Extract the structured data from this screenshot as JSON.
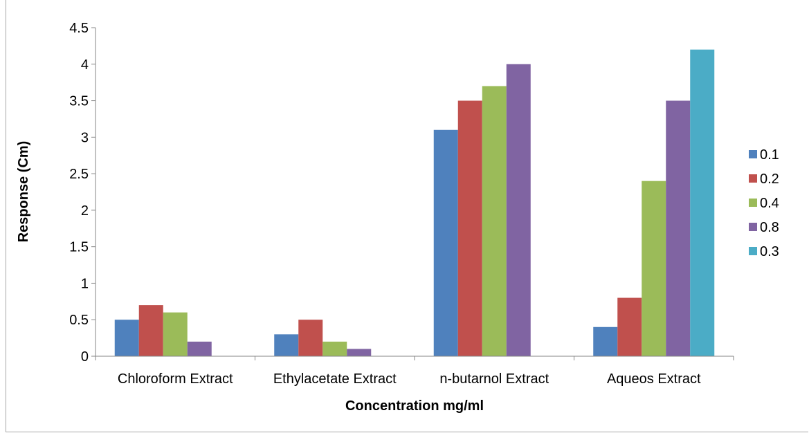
{
  "chart_data": {
    "type": "bar",
    "title": "",
    "xlabel": "Concentration mg/ml",
    "ylabel": "Response (Cm)",
    "ylim": [
      0,
      4.5
    ],
    "yticks": [
      "0",
      "0.5",
      "1",
      "1.5",
      "2",
      "2.5",
      "3",
      "3.5",
      "4",
      "4.5"
    ],
    "categories": [
      "Chloroform Extract",
      "Ethylacetate Extract",
      "n-butarnol Extract",
      "Aqueos Extract"
    ],
    "series": [
      {
        "name": "0.1",
        "color": "#4F81BD",
        "values": [
          0.5,
          0.3,
          3.1,
          0.4
        ]
      },
      {
        "name": "0.2",
        "color": "#C0504D",
        "values": [
          0.7,
          0.5,
          3.5,
          0.8
        ]
      },
      {
        "name": "0.4",
        "color": "#9BBB59",
        "values": [
          0.6,
          0.2,
          3.7,
          2.4
        ]
      },
      {
        "name": "0.8",
        "color": "#8064A2",
        "values": [
          0.2,
          0.1,
          4.0,
          3.5
        ]
      },
      {
        "name": "0.3",
        "color": "#4BACC6",
        "values": [
          null,
          null,
          null,
          4.2
        ]
      }
    ],
    "grid": false,
    "legend_position": "right"
  }
}
